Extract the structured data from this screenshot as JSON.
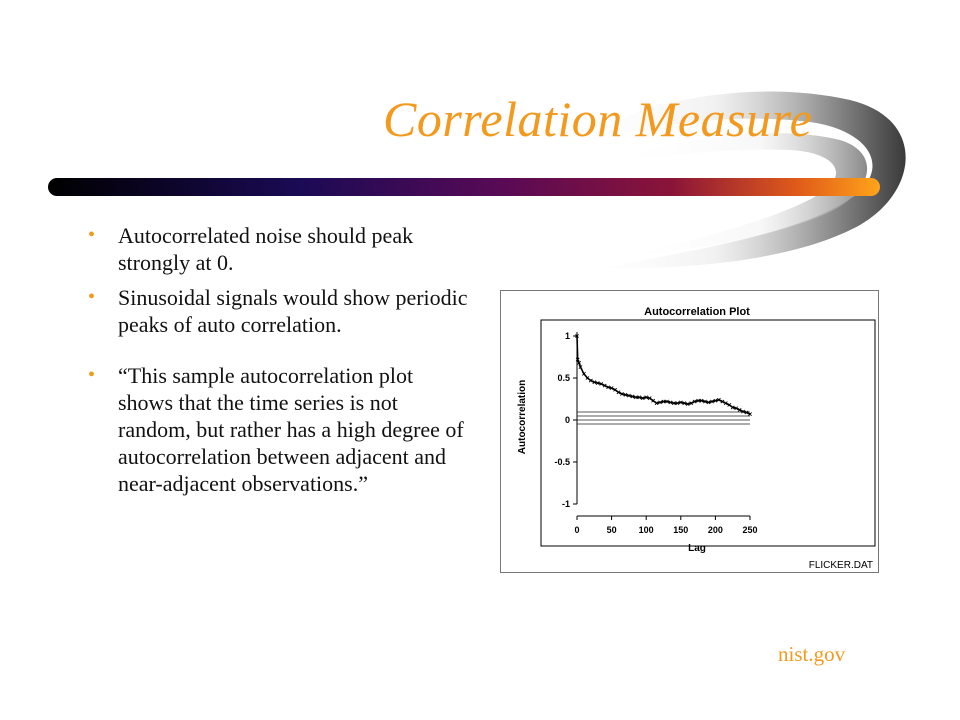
{
  "slide": {
    "title": "Correlation Measure",
    "bullets": [
      "Autocorrelated noise should peak strongly at 0.",
      "Sinusoidal signals would show periodic peaks of auto correlation.",
      "“This sample autocorrelation plot shows that the time series is not random, but rather has a high degree of autocorrelation between adjacent and near-adjacent observations.”"
    ],
    "credit": "nist.gov",
    "accent_color": "#f39a1e"
  },
  "chart_data": {
    "type": "line",
    "title": "Autocorrelation Plot",
    "xlabel": "Lag",
    "ylabel": "Autocorrelation",
    "xlim": [
      0,
      250
    ],
    "ylim": [
      -1,
      1
    ],
    "x_ticks": [
      "0",
      "50",
      "100",
      "150",
      "200",
      "250"
    ],
    "y_ticks": [
      "1",
      "0.5",
      "0",
      "-0.5",
      "-1"
    ],
    "series": [
      {
        "x": [
          0,
          1,
          3,
          5,
          10,
          15,
          20,
          25,
          30,
          35,
          40,
          45,
          50,
          55,
          60,
          65,
          70,
          75,
          80,
          85,
          90,
          95,
          100,
          105,
          110,
          115,
          120,
          125,
          130,
          135,
          140,
          145,
          150,
          155,
          160,
          165,
          170,
          175,
          180,
          185,
          190,
          195,
          200,
          205,
          210,
          215,
          220,
          225,
          230,
          235,
          240,
          245,
          250
        ],
        "y": [
          1.0,
          0.72,
          0.68,
          0.63,
          0.55,
          0.5,
          0.47,
          0.45,
          0.44,
          0.43,
          0.41,
          0.39,
          0.38,
          0.36,
          0.33,
          0.31,
          0.3,
          0.29,
          0.28,
          0.27,
          0.27,
          0.26,
          0.27,
          0.26,
          0.23,
          0.2,
          0.21,
          0.22,
          0.22,
          0.21,
          0.2,
          0.2,
          0.21,
          0.2,
          0.19,
          0.2,
          0.22,
          0.23,
          0.23,
          0.22,
          0.21,
          0.22,
          0.23,
          0.24,
          0.22,
          0.2,
          0.18,
          0.15,
          0.14,
          0.12,
          0.1,
          0.09,
          0.07
        ]
      }
    ],
    "reference_line_count": 4,
    "footer_label": "FLICKER.DAT",
    "grid": false
  }
}
